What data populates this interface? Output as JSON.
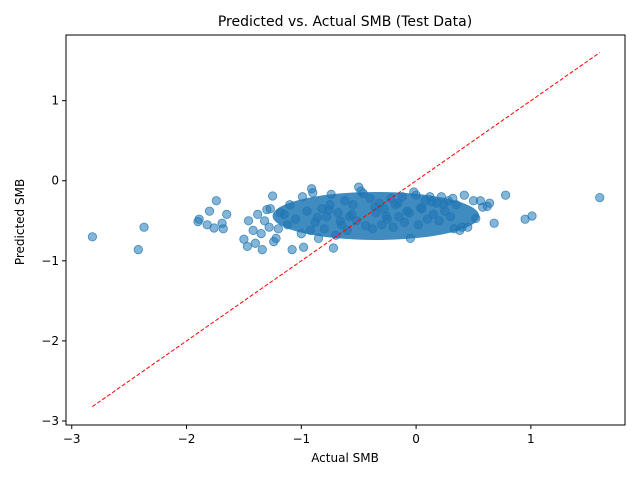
{
  "chart_data": {
    "type": "scatter",
    "title": "Predicted vs. Actual SMB (Test Data)",
    "xlabel": "Actual SMB",
    "ylabel": "Predicted SMB",
    "xlim": [
      -3.05,
      1.82
    ],
    "ylim": [
      -3.05,
      1.82
    ],
    "xticks": [
      -3,
      -2,
      -1,
      0,
      1
    ],
    "yticks": [
      -3,
      -2,
      -1,
      0,
      1
    ],
    "xtick_labels": [
      "−3",
      "−2",
      "−1",
      "0",
      "1"
    ],
    "ytick_labels": [
      "−3",
      "−2",
      "−1",
      "0",
      "1"
    ],
    "grid": false,
    "marker_color": "#1f77b4",
    "marker_alpha": 0.55,
    "reference_line": {
      "style": "dashed",
      "color": "#ff0000",
      "from": [
        -2.82,
        -2.82
      ],
      "to": [
        1.6,
        1.6
      ]
    },
    "x": [
      -2.82,
      -2.42,
      -2.37,
      -1.9,
      -1.89,
      -1.8,
      -1.82,
      -1.76,
      -1.74,
      -1.69,
      -1.68,
      -1.65,
      -1.5,
      -1.47,
      -1.46,
      -1.42,
      -1.4,
      -1.38,
      -1.34,
      -1.3,
      -1.27,
      -1.25,
      -1.24,
      -1.22,
      -1.1,
      -1.08,
      -0.99,
      -0.98,
      -0.91,
      -0.9,
      -0.74,
      -0.72,
      -0.5,
      -0.48,
      -0.46,
      -0.05,
      -0.02,
      0.33,
      0.38,
      0.4,
      0.42,
      0.45,
      0.5,
      0.52,
      0.56,
      0.58,
      0.62,
      0.64,
      0.68,
      0.78,
      0.95,
      1.01,
      1.6,
      -1.2,
      -1.15,
      -1.12,
      -1.05,
      -1.0,
      -0.95,
      -0.88,
      -0.85,
      -0.82,
      -0.8,
      -0.78,
      -0.75,
      -0.7,
      -0.68,
      -0.65,
      -0.62,
      -0.6,
      -0.58,
      -0.55,
      -0.52,
      -0.4,
      -0.38,
      -0.35,
      -0.32,
      -0.3,
      -0.28,
      -0.25,
      -0.22,
      -0.2,
      -0.18,
      -0.15,
      -0.12,
      -0.1,
      -0.08,
      0.0,
      0.02,
      0.05,
      0.08,
      0.1,
      0.12,
      0.15,
      0.18,
      0.2,
      0.22,
      0.25,
      0.28,
      0.3,
      0.35,
      -1.35,
      -1.32,
      -1.28,
      -1.18,
      -0.92,
      -0.86,
      -0.76,
      -0.66,
      -0.56,
      -0.44,
      -0.36,
      -0.26,
      -0.16,
      -0.06,
      0.04,
      0.14,
      0.24,
      0.32
    ],
    "y": [
      -0.7,
      -0.86,
      -0.58,
      -0.51,
      -0.48,
      -0.38,
      -0.55,
      -0.59,
      -0.25,
      -0.53,
      -0.6,
      -0.42,
      -0.73,
      -0.82,
      -0.5,
      -0.62,
      -0.78,
      -0.42,
      -0.86,
      -0.36,
      -0.35,
      -0.19,
      -0.76,
      -0.72,
      -0.3,
      -0.86,
      -0.2,
      -0.83,
      -0.1,
      -0.15,
      -0.17,
      -0.84,
      -0.08,
      -0.13,
      -0.16,
      -0.72,
      -0.14,
      -0.6,
      -0.62,
      -0.58,
      -0.18,
      -0.58,
      -0.25,
      -0.47,
      -0.25,
      -0.33,
      -0.32,
      -0.28,
      -0.53,
      -0.18,
      -0.48,
      -0.44,
      -0.21,
      -0.6,
      -0.42,
      -0.55,
      -0.48,
      -0.66,
      -0.38,
      -0.52,
      -0.72,
      -0.35,
      -0.6,
      -0.45,
      -0.3,
      -0.68,
      -0.4,
      -0.55,
      -0.25,
      -0.62,
      -0.45,
      -0.3,
      -0.5,
      -0.22,
      -0.6,
      -0.4,
      -0.28,
      -0.55,
      -0.35,
      -0.48,
      -0.22,
      -0.58,
      -0.3,
      -0.45,
      -0.2,
      -0.52,
      -0.38,
      -0.18,
      -0.55,
      -0.35,
      -0.25,
      -0.48,
      -0.2,
      -0.42,
      -0.28,
      -0.5,
      -0.2,
      -0.38,
      -0.25,
      -0.45,
      -0.3,
      -0.66,
      -0.5,
      -0.58,
      -0.4,
      -0.62,
      -0.46,
      -0.36,
      -0.5,
      -0.42,
      -0.56,
      -0.33,
      -0.44,
      -0.28,
      -0.4,
      -0.34,
      -0.26,
      -0.3,
      -0.22
    ]
  }
}
